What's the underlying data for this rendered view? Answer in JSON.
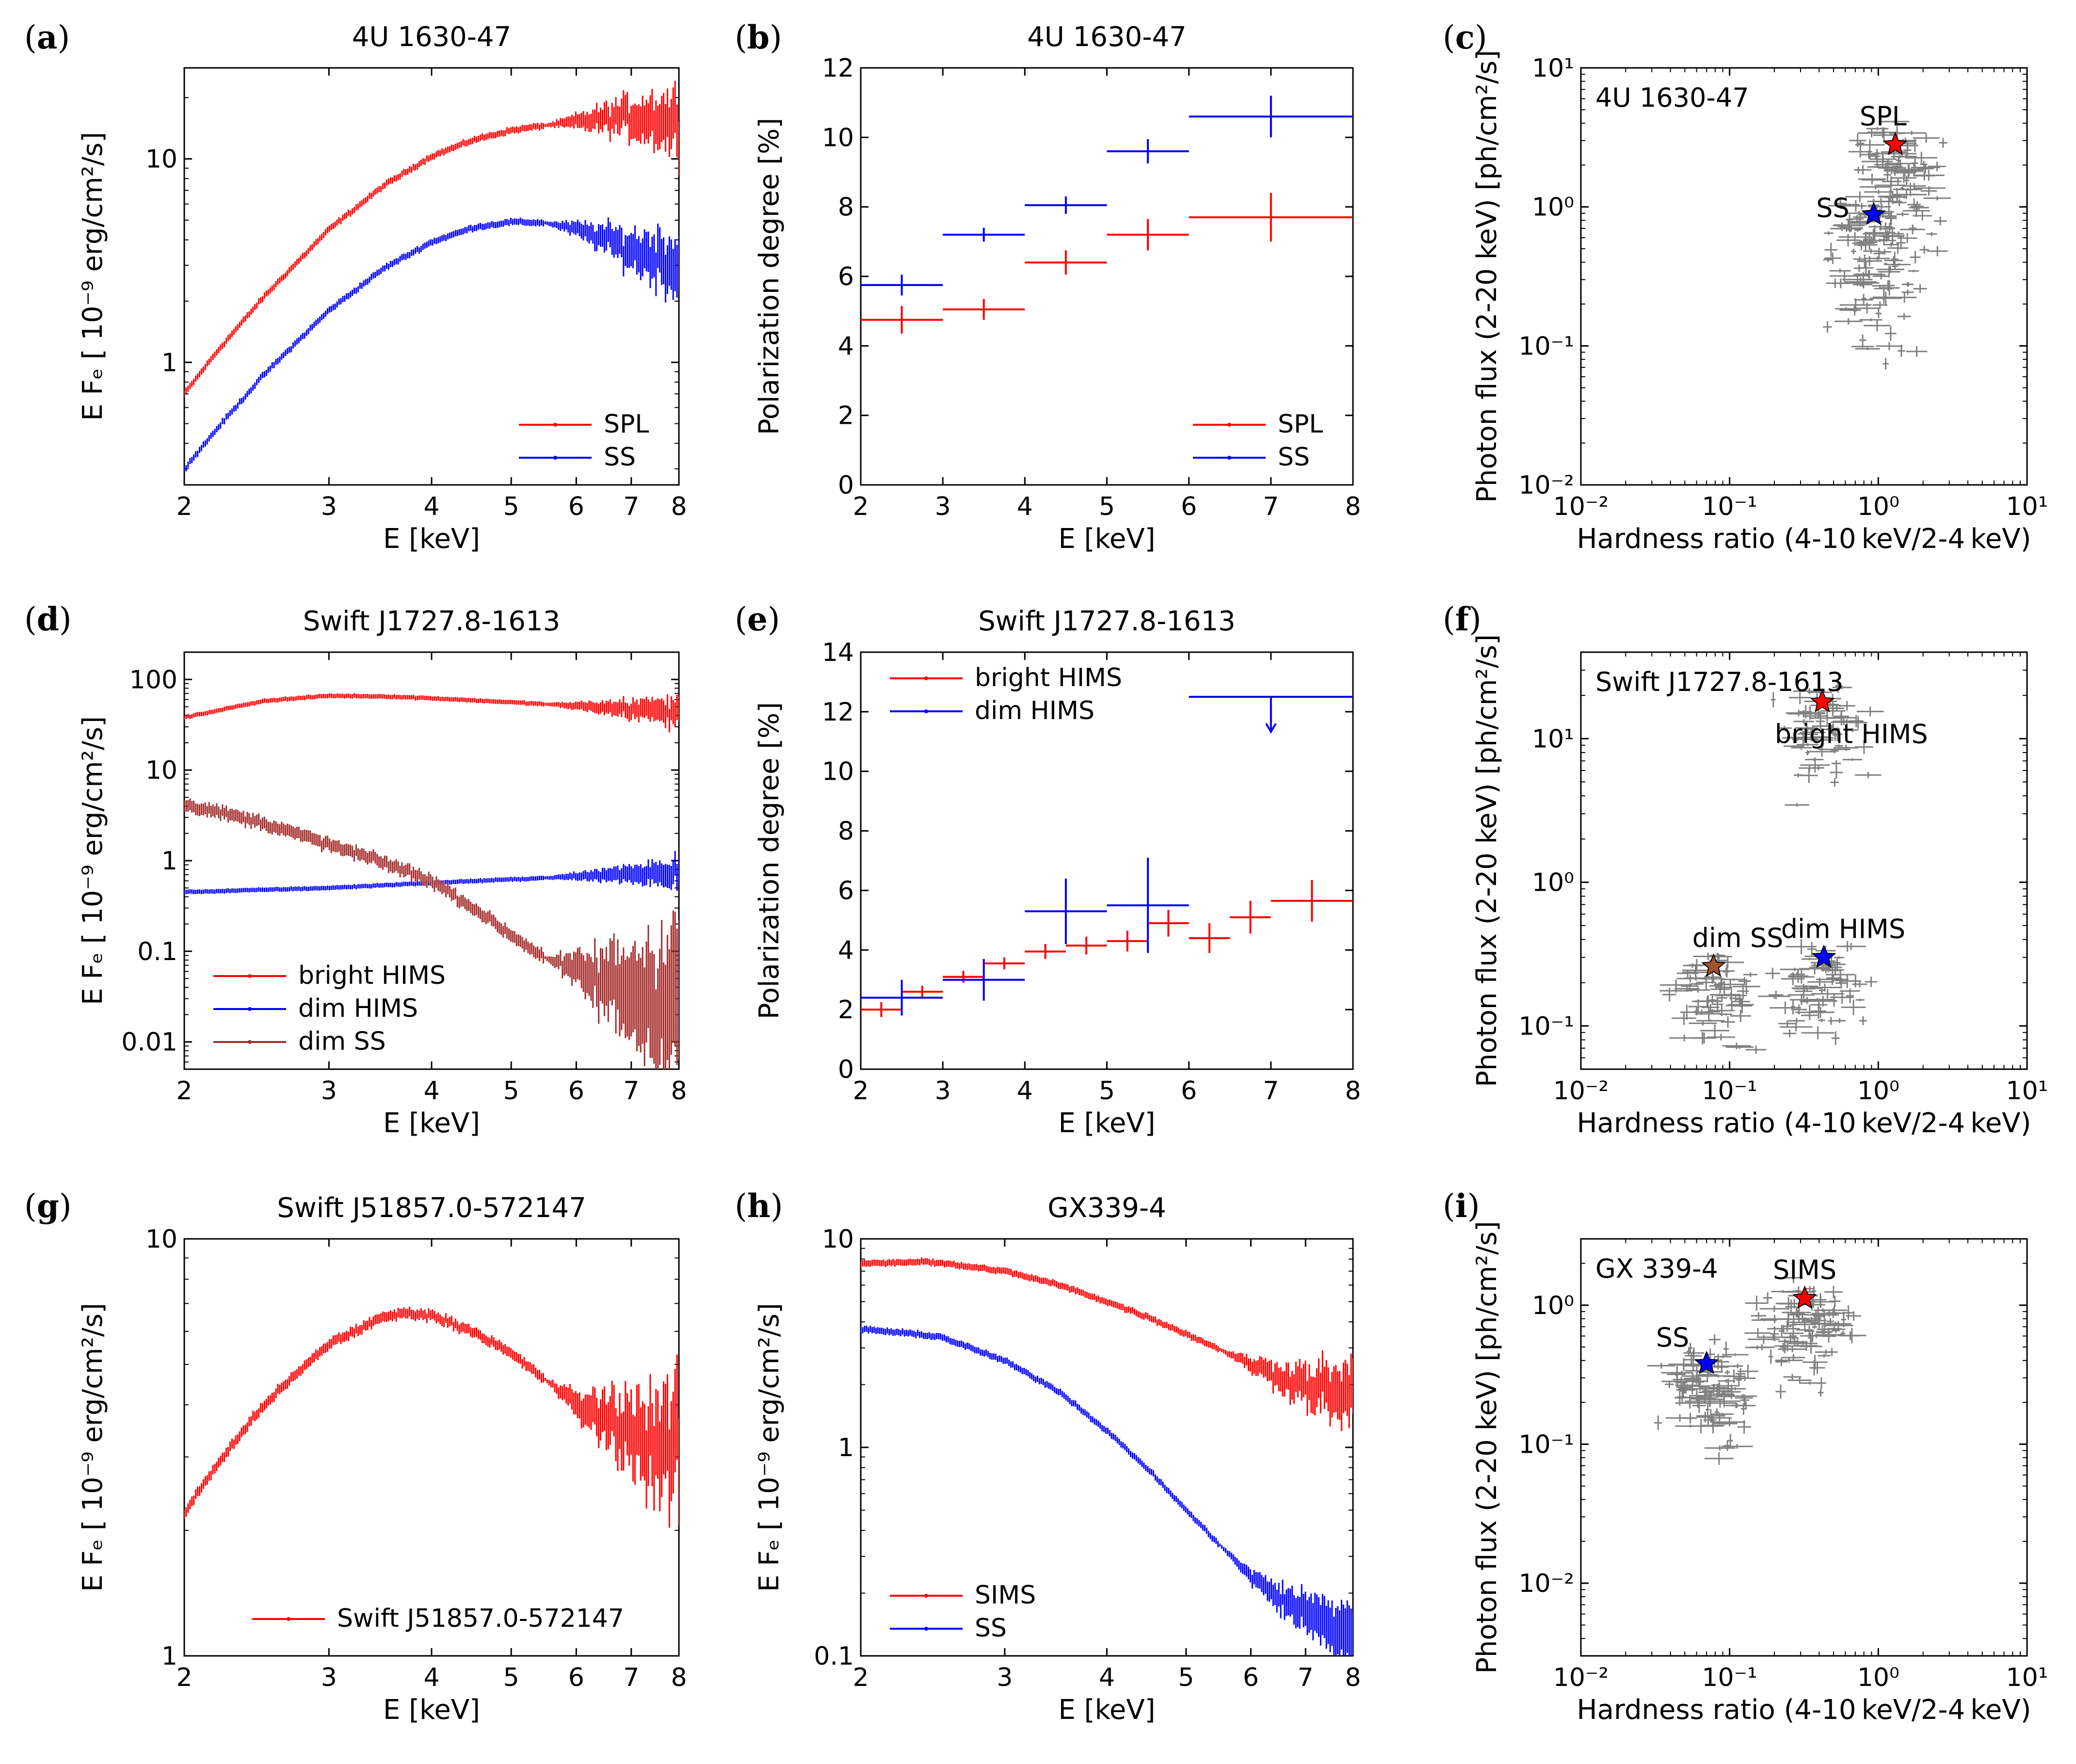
{
  "chart_data": [
    {
      "panel": "(a)",
      "type": "line",
      "title": "4U 1630-47",
      "xlabel": "E [keV]",
      "ylabel": "E F_E [ 10^-9 erg/cm^2/s]",
      "xscale": "log",
      "yscale": "log",
      "xlim": [
        2,
        8
      ],
      "ylim": [
        0.25,
        28
      ],
      "xticks": [
        2,
        3,
        4,
        5,
        6,
        7,
        8
      ],
      "yticks": [
        1,
        10
      ],
      "legend_loc": "lower-right",
      "series": [
        {
          "name": "SPL",
          "color": "#ff0000",
          "x": [
            2,
            2.2,
            2.5,
            3,
            3.5,
            4,
            4.5,
            5,
            5.5,
            6,
            6.5,
            7,
            7.5,
            8
          ],
          "y": [
            0.7,
            1.15,
            2.1,
            4.5,
            7.4,
            10.3,
            12.4,
            13.8,
            14.6,
            15.2,
            15.7,
            16.0,
            15.8,
            15.0
          ]
        },
        {
          "name": "SS",
          "color": "#0000ff",
          "x": [
            2,
            2.2,
            2.5,
            3,
            3.5,
            4,
            4.5,
            5,
            5.5,
            6,
            6.5,
            7,
            7.5,
            8
          ],
          "y": [
            0.3,
            0.48,
            0.87,
            1.8,
            2.9,
            3.9,
            4.6,
            4.9,
            4.85,
            4.5,
            4.05,
            3.55,
            3.3,
            3.0
          ]
        }
      ]
    },
    {
      "panel": "(b)",
      "type": "errorbar",
      "title": "4U 1630-47",
      "xlabel": "E [keV]",
      "ylabel": "Polarization degree [%]",
      "xscale": "linear",
      "yscale": "linear",
      "xlim": [
        2,
        8
      ],
      "ylim": [
        0,
        12
      ],
      "xticks": [
        2,
        3,
        4,
        5,
        6,
        7,
        8
      ],
      "yticks": [
        0,
        2,
        4,
        6,
        8,
        10,
        12
      ],
      "legend_loc": "lower-right",
      "series": [
        {
          "name": "SPL",
          "color": "#ff0000",
          "x": [
            2.5,
            3.5,
            4.5,
            5.5,
            7
          ],
          "y": [
            4.75,
            5.05,
            6.4,
            7.2,
            7.7
          ],
          "xerr": [
            0.5,
            0.5,
            0.5,
            0.5,
            1
          ],
          "yerr": [
            0.4,
            0.3,
            0.35,
            0.45,
            0.7
          ]
        },
        {
          "name": "SS",
          "color": "#0000ff",
          "x": [
            2.5,
            3.5,
            4.5,
            5.5,
            7
          ],
          "y": [
            5.75,
            7.2,
            8.05,
            9.6,
            10.6
          ],
          "xerr": [
            0.5,
            0.5,
            0.5,
            0.5,
            1
          ],
          "yerr": [
            0.3,
            0.2,
            0.25,
            0.35,
            0.6
          ]
        }
      ]
    },
    {
      "panel": "(c)",
      "type": "scatter",
      "title": "",
      "xlabel": "Hardness ratio (4-10 keV/2-4 keV)",
      "ylabel": "Photon flux (2-20 keV) [ph/cm^2/s]",
      "xscale": "log",
      "yscale": "log",
      "xlim": [
        0.01,
        10
      ],
      "ylim": [
        0.01,
        10
      ],
      "xticks": [
        0.01,
        0.1,
        1,
        10
      ],
      "yticks": [
        0.01,
        0.1,
        1,
        10
      ],
      "annotation": "4U 1630-47",
      "markers": [
        {
          "name": "SPL",
          "x": 1.3,
          "y": 2.8,
          "color": "#ff0000"
        },
        {
          "name": "SS",
          "x": 0.93,
          "y": 0.88,
          "color": "#0000ff"
        }
      ]
    },
    {
      "panel": "(d)",
      "type": "line",
      "title": "Swift J1727.8-1613",
      "xlabel": "E [keV]",
      "ylabel": "E F_E [ 10^-9 erg/cm^2/s]",
      "xscale": "log",
      "yscale": "log",
      "xlim": [
        2,
        8
      ],
      "ylim": [
        0.005,
        200
      ],
      "xticks": [
        2,
        3,
        4,
        5,
        6,
        7,
        8
      ],
      "yticks": [
        0.01,
        0.1,
        1,
        10,
        100
      ],
      "legend_loc": "lower-left",
      "series": [
        {
          "name": "bright HIMS",
          "color": "#ff0000",
          "x": [
            2,
            2.5,
            3,
            3.5,
            4,
            5,
            6,
            7,
            8
          ],
          "y": [
            38,
            58,
            66,
            65,
            62,
            56,
            51,
            47,
            44
          ]
        },
        {
          "name": "dim HIMS",
          "color": "#0000ff",
          "x": [
            2,
            3,
            4,
            5,
            6,
            7,
            8
          ],
          "y": [
            0.45,
            0.5,
            0.57,
            0.62,
            0.67,
            0.72,
            0.75
          ]
        },
        {
          "name": "dim SS",
          "color": "#a52a2a",
          "x": [
            2,
            2.5,
            3,
            3.5,
            4,
            4.5,
            5,
            5.5,
            6,
            6.5,
            7,
            7.5,
            8
          ],
          "y": [
            4.2,
            2.6,
            1.5,
            0.95,
            0.6,
            0.3,
            0.15,
            0.085,
            0.06,
            0.045,
            0.035,
            0.03,
            0.04
          ]
        }
      ]
    },
    {
      "panel": "(e)",
      "type": "errorbar",
      "title": "Swift J1727.8-1613",
      "xlabel": "E [keV]",
      "ylabel": "Polarization degree [%]",
      "xscale": "linear",
      "yscale": "linear",
      "xlim": [
        2,
        8
      ],
      "ylim": [
        0,
        14
      ],
      "xticks": [
        2,
        3,
        4,
        5,
        6,
        7,
        8
      ],
      "yticks": [
        0,
        2,
        4,
        6,
        8,
        10,
        12,
        14
      ],
      "legend_loc": "upper-left",
      "series": [
        {
          "name": "bright HIMS",
          "color": "#ff0000",
          "x": [
            2.25,
            2.75,
            3.25,
            3.75,
            4.25,
            4.75,
            5.25,
            5.75,
            6.25,
            6.75,
            7.5
          ],
          "y": [
            2.0,
            2.6,
            3.1,
            3.55,
            3.95,
            4.15,
            4.3,
            4.9,
            4.4,
            5.1,
            5.65
          ],
          "xerr": [
            0.25,
            0.25,
            0.25,
            0.25,
            0.25,
            0.25,
            0.25,
            0.25,
            0.25,
            0.25,
            0.5
          ],
          "yerr": [
            0.25,
            0.2,
            0.2,
            0.2,
            0.25,
            0.3,
            0.35,
            0.45,
            0.5,
            0.55,
            0.7
          ]
        },
        {
          "name": "dim HIMS",
          "color": "#0000ff",
          "x": [
            2.5,
            3.5,
            4.5,
            5.5,
            7
          ],
          "y": [
            2.4,
            3.0,
            5.3,
            5.5,
            12.5
          ],
          "xerr": [
            0.5,
            0.5,
            0.5,
            0.5,
            1
          ],
          "yerr": [
            0.6,
            0.7,
            1.1,
            1.6,
            0
          ],
          "upper_limit_at_x": 7
        }
      ]
    },
    {
      "panel": "(f)",
      "type": "scatter",
      "title": "",
      "xlabel": "Hardness ratio (4-10 keV/2-4 keV)",
      "ylabel": "Photon flux (2-20 keV) [ph/cm^2/s]",
      "xscale": "log",
      "yscale": "log",
      "xlim": [
        0.01,
        10
      ],
      "ylim": [
        0.05,
        40
      ],
      "xticks": [
        0.01,
        0.1,
        1,
        10
      ],
      "yticks": [
        0.1,
        1,
        10
      ],
      "annotation": "Swift J1727.8-1613",
      "markers": [
        {
          "name": "bright HIMS",
          "x": 0.42,
          "y": 18,
          "color": "#ff0000"
        },
        {
          "name": "dim SS",
          "x": 0.078,
          "y": 0.26,
          "color": "#a0522d"
        },
        {
          "name": "dim HIMS",
          "x": 0.43,
          "y": 0.3,
          "color": "#0000ff"
        }
      ]
    },
    {
      "panel": "(g)",
      "type": "line",
      "title": "Swift J51857.0-572147",
      "xlabel": "E [keV]",
      "ylabel": "E F_E [ 10^-9 erg/cm^2/s]",
      "xscale": "log",
      "yscale": "log",
      "xlim": [
        2,
        8
      ],
      "ylim": [
        1,
        10
      ],
      "xticks": [
        2,
        3,
        4,
        5,
        6,
        7,
        8
      ],
      "yticks": [
        1,
        10
      ],
      "legend_loc": "lower-center",
      "series": [
        {
          "name": "Swift J51857.0-572147",
          "color": "#ff0000",
          "x": [
            2,
            2.2,
            2.5,
            3,
            3.5,
            3.75,
            4,
            4.5,
            5,
            5.5,
            6,
            6.5,
            7,
            7.5,
            8
          ],
          "y": [
            2.2,
            2.9,
            4.0,
            5.6,
            6.5,
            6.65,
            6.55,
            6.0,
            5.3,
            4.6,
            4.0,
            3.7,
            3.5,
            3.2,
            3.0
          ]
        }
      ]
    },
    {
      "panel": "(h)",
      "type": "line",
      "title": "GX339-4",
      "xlabel": "E [keV]",
      "ylabel": "E F_E [ 10^-9 erg/cm^2/s]",
      "xscale": "log",
      "yscale": "log",
      "xlim": [
        2,
        8
      ],
      "ylim": [
        0.1,
        10
      ],
      "xticks": [
        2,
        3,
        4,
        5,
        6,
        7,
        8
      ],
      "yticks": [
        0.1,
        1,
        10
      ],
      "legend_loc": "lower-left",
      "series": [
        {
          "name": "SIMS",
          "color": "#ff0000",
          "x": [
            2,
            2.4,
            3,
            3.5,
            4,
            4.5,
            5,
            5.5,
            6,
            6.5,
            7,
            7.5,
            8
          ],
          "y": [
            7.6,
            7.8,
            7.0,
            6.0,
            5.0,
            4.2,
            3.5,
            2.95,
            2.5,
            2.2,
            2.0,
            1.85,
            1.7
          ]
        },
        {
          "name": "SS",
          "color": "#0000ff",
          "x": [
            2,
            2.5,
            3,
            3.5,
            4,
            4.5,
            5,
            5.5,
            6,
            6.5,
            7,
            7.5,
            8
          ],
          "y": [
            3.7,
            3.4,
            2.6,
            1.85,
            1.2,
            0.78,
            0.5,
            0.34,
            0.24,
            0.19,
            0.16,
            0.14,
            0.13
          ]
        }
      ]
    },
    {
      "panel": "(i)",
      "type": "scatter",
      "title": "",
      "xlabel": "Hardness ratio (4-10 keV/2-4 keV)",
      "ylabel": "Photon flux (2-20 keV) [ph/cm^2/s]",
      "xscale": "log",
      "yscale": "log",
      "xlim": [
        0.01,
        10
      ],
      "ylim": [
        0.003,
        3
      ],
      "xticks": [
        0.01,
        0.1,
        1,
        10
      ],
      "yticks": [
        0.01,
        0.1,
        1
      ],
      "annotation": "GX 339-4",
      "markers": [
        {
          "name": "SIMS",
          "x": 0.32,
          "y": 1.12,
          "color": "#ff0000"
        },
        {
          "name": "SS",
          "x": 0.07,
          "y": 0.38,
          "color": "#0000ff"
        }
      ]
    }
  ]
}
